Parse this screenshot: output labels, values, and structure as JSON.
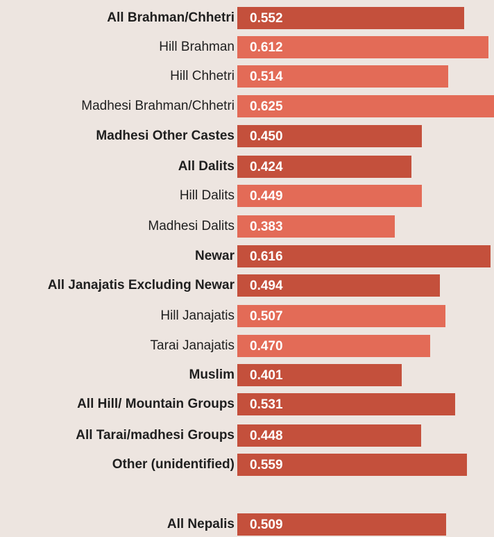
{
  "chart_data": {
    "type": "bar",
    "orientation": "horizontal",
    "categories": [
      "All Brahman/Chhetri",
      "Hill Brahman",
      "Hill Chhetri",
      "Madhesi Brahman/Chhetri",
      "Madhesi Other Castes",
      "All Dalits",
      "Hill Dalits",
      "Madhesi Dalits",
      "Newar",
      "All Janajatis Excluding Newar",
      "Hill Janajatis",
      "Tarai Janajatis",
      "Muslim",
      "All Hill/ Mountain Groups",
      "All Tarai/madhesi Groups",
      "Other (unidentified)",
      "All Nepalis"
    ],
    "values": [
      0.552,
      0.612,
      0.514,
      0.625,
      0.45,
      0.424,
      0.449,
      0.383,
      0.616,
      0.494,
      0.507,
      0.47,
      0.401,
      0.531,
      0.448,
      0.559,
      0.509
    ],
    "value_labels": [
      "0.552",
      "0.612",
      "0.514",
      "0.625",
      "0.450",
      "0.424",
      "0.449",
      "0.383",
      "0.616",
      "0.494",
      "0.507",
      "0.470",
      "0.401",
      "0.531",
      "0.448",
      "0.559",
      "0.509"
    ],
    "group_level": [
      "group",
      "subgroup",
      "subgroup",
      "subgroup",
      "group",
      "group",
      "subgroup",
      "subgroup",
      "group",
      "group",
      "subgroup",
      "subgroup",
      "group",
      "group",
      "group",
      "group",
      "group"
    ],
    "colors": {
      "group": "#c4503c",
      "subgroup": "#e36b57",
      "label_text": "#1f1f1f",
      "value_text": "#ffffff",
      "background": "#ede5e0"
    },
    "title": "",
    "xlabel": "",
    "ylabel": "",
    "xlim": [
      0,
      0.625
    ],
    "grid": false,
    "legend": "none"
  }
}
